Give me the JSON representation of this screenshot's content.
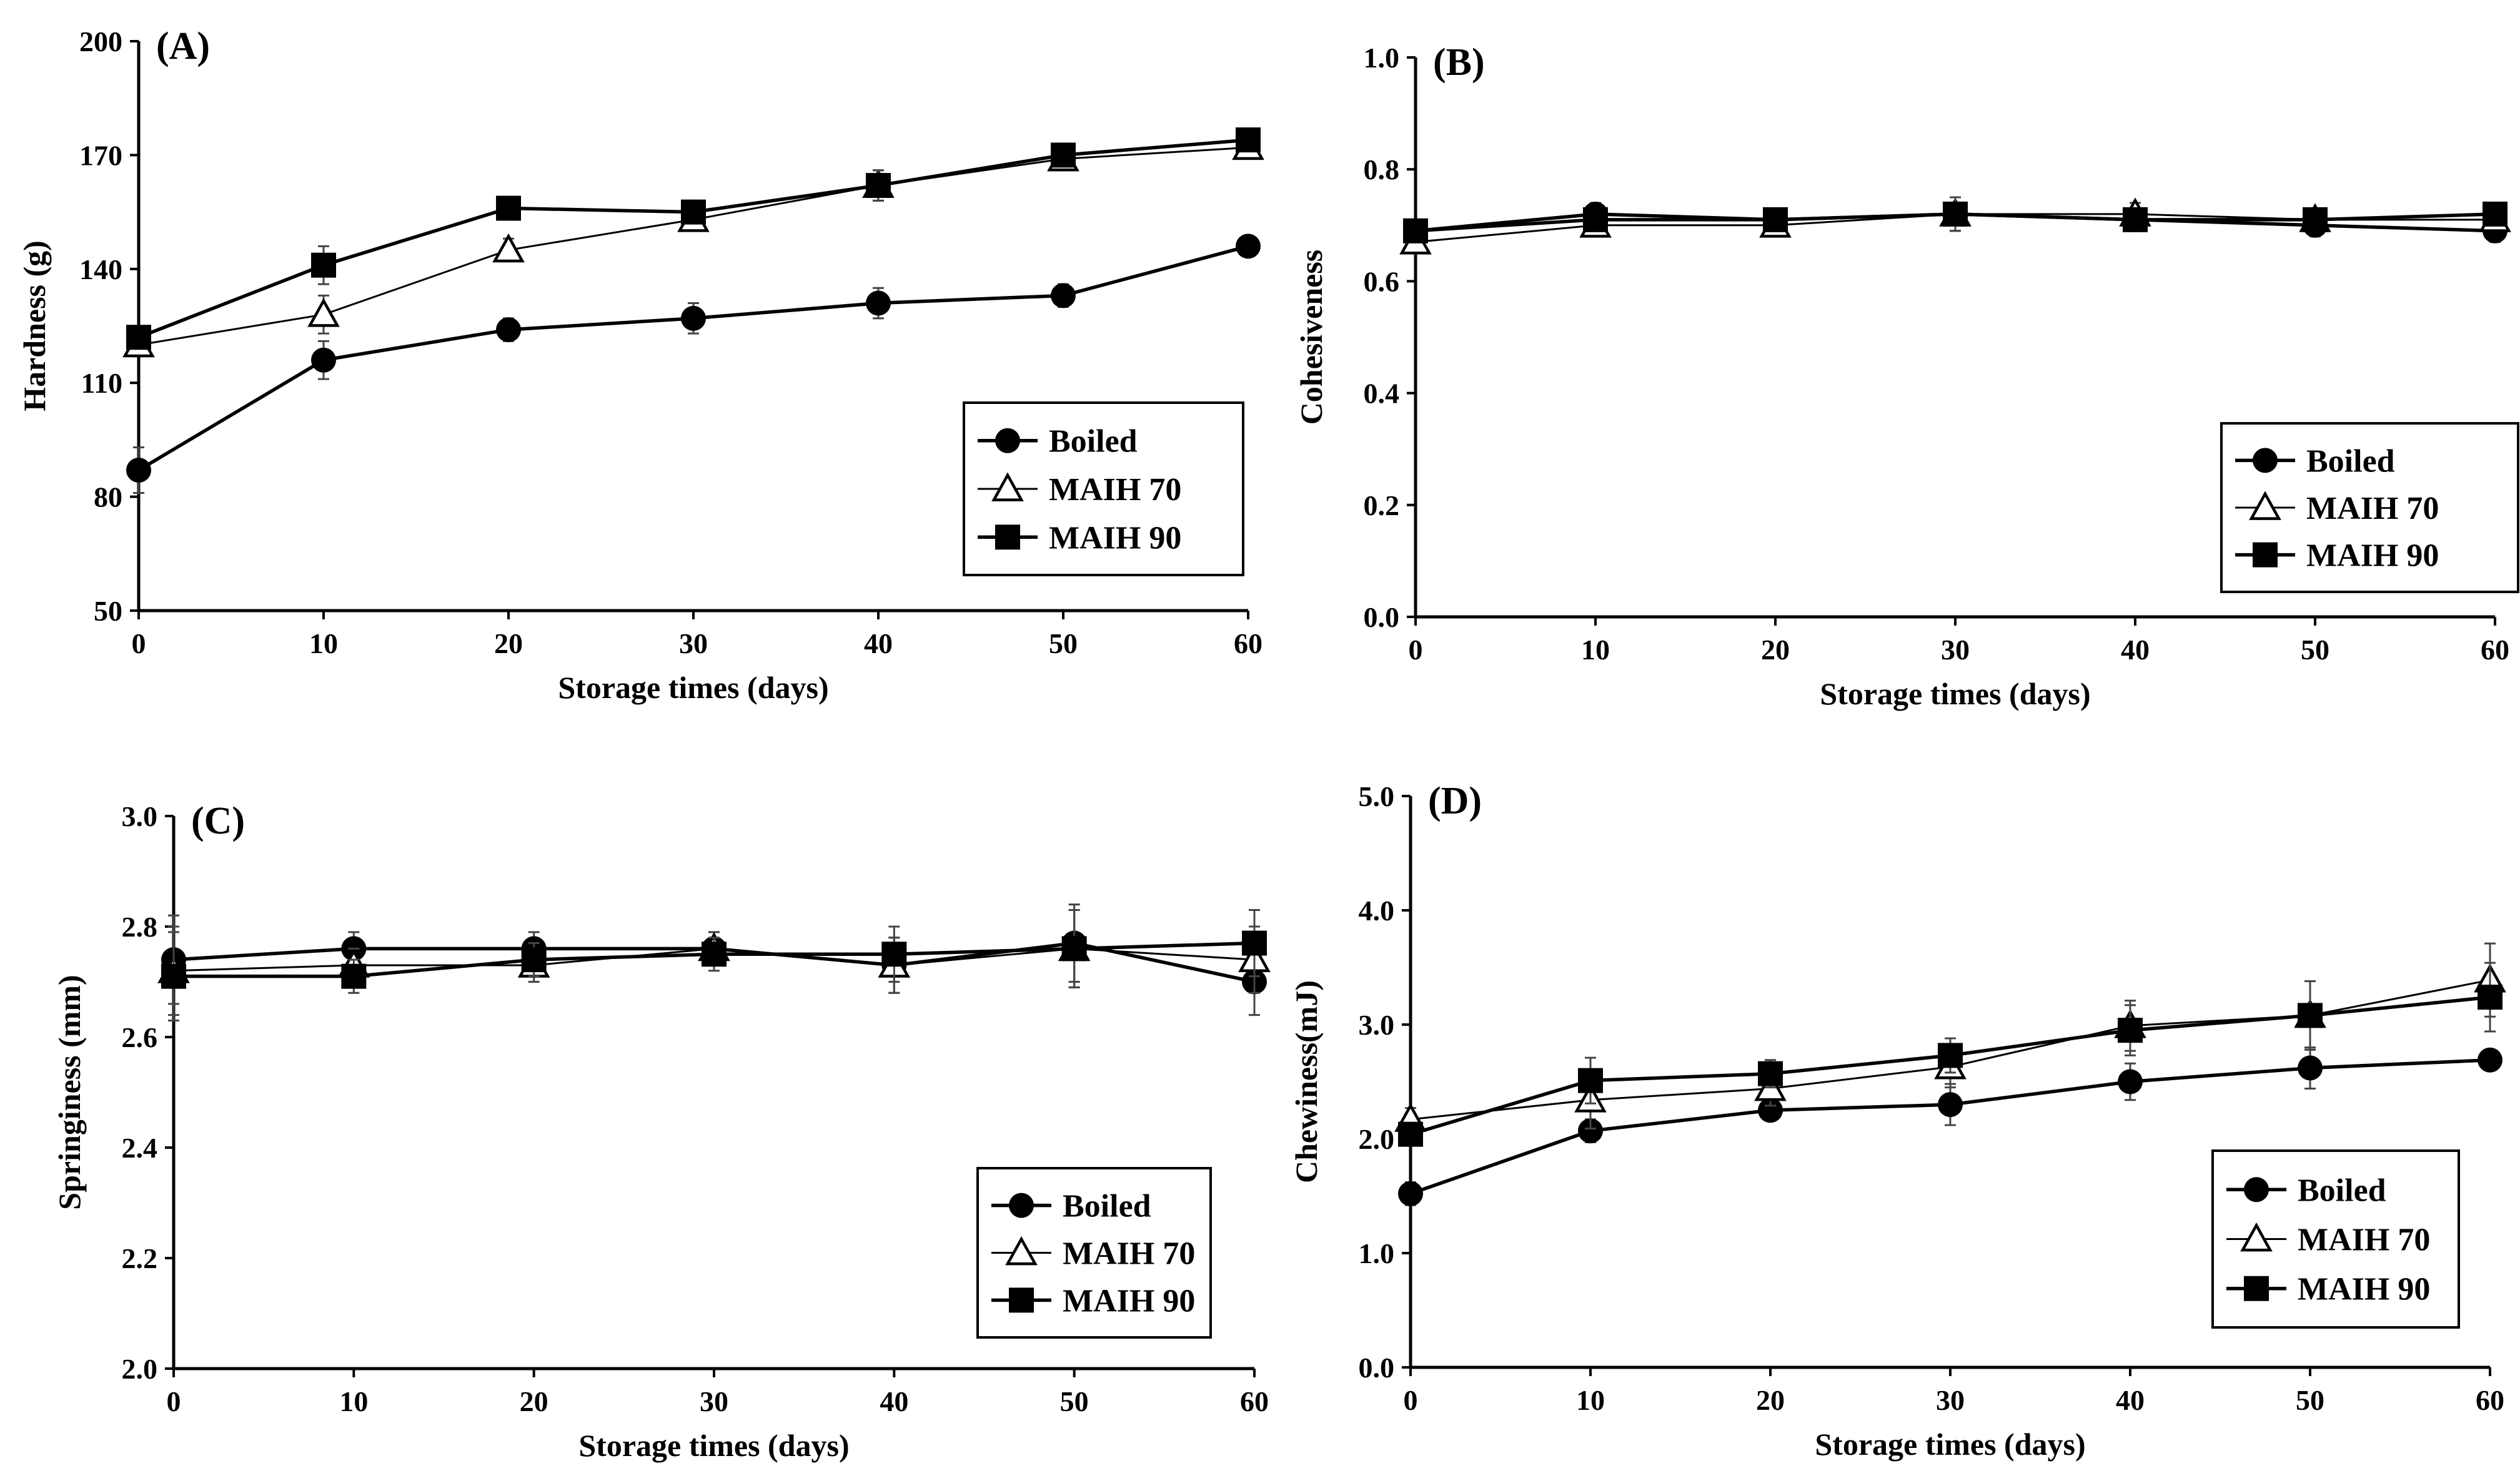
{
  "chart_data": [
    {
      "type": "line",
      "panel_label": "(A)",
      "xlabel": "Storage times (days)",
      "ylabel": "Hardness (g)",
      "xlim": [
        0,
        60
      ],
      "ylim": [
        50,
        200
      ],
      "xticks": [
        0,
        10,
        20,
        30,
        40,
        50,
        60
      ],
      "yticks": [
        50,
        80,
        110,
        140,
        170,
        200
      ],
      "ytick_labels": [
        "50",
        "80",
        "110",
        "140",
        "170",
        "200"
      ],
      "legend_position": "bottom-right",
      "x": [
        0,
        10,
        20,
        30,
        40,
        50,
        60
      ],
      "series": [
        {
          "name": "Boiled",
          "marker": "filled-circle",
          "line": "thick",
          "values": [
            87,
            116,
            124,
            127,
            131,
            133,
            146
          ],
          "errors": [
            6,
            5,
            3,
            4,
            4,
            3,
            2
          ]
        },
        {
          "name": "MAIH 70",
          "marker": "open-triangle",
          "line": "thin",
          "values": [
            120,
            128,
            145,
            153,
            162,
            169,
            172
          ],
          "errors": [
            3,
            5,
            3,
            3,
            4,
            3,
            2
          ]
        },
        {
          "name": "MAIH 90",
          "marker": "filled-square",
          "line": "thick",
          "values": [
            122,
            141,
            156,
            155,
            162,
            170,
            174
          ],
          "errors": [
            3,
            5,
            3,
            3,
            4,
            3,
            2
          ]
        }
      ]
    },
    {
      "type": "line",
      "panel_label": "(B)",
      "xlabel": "Storage times (days)",
      "ylabel": "Cohesiveness",
      "xlim": [
        0,
        60
      ],
      "ylim": [
        0,
        1
      ],
      "xticks": [
        0,
        10,
        20,
        30,
        40,
        50,
        60
      ],
      "yticks": [
        0,
        0.2,
        0.4,
        0.6,
        0.8,
        1.0
      ],
      "ytick_labels": [
        "0.0",
        "0.2",
        "0.4",
        "0.6",
        "0.8",
        "1.0"
      ],
      "legend_position": "bottom-right",
      "x": [
        0,
        10,
        20,
        30,
        40,
        50,
        60
      ],
      "series": [
        {
          "name": "Boiled",
          "marker": "filled-circle",
          "line": "thick",
          "values": [
            0.69,
            0.72,
            0.71,
            0.72,
            0.71,
            0.7,
            0.69
          ],
          "errors": [
            0.02,
            0.02,
            0.02,
            0.03,
            0.02,
            0.02,
            0.02
          ]
        },
        {
          "name": "MAIH 70",
          "marker": "open-triangle",
          "line": "thin",
          "values": [
            0.67,
            0.7,
            0.7,
            0.72,
            0.72,
            0.71,
            0.71
          ],
          "errors": [
            0.02,
            0.02,
            0.02,
            0.03,
            0.02,
            0.02,
            0.02
          ]
        },
        {
          "name": "MAIH 90",
          "marker": "filled-square",
          "line": "thick",
          "values": [
            0.69,
            0.71,
            0.71,
            0.72,
            0.71,
            0.71,
            0.72
          ],
          "errors": [
            0.02,
            0.02,
            0.02,
            0.03,
            0.02,
            0.02,
            0.02
          ]
        }
      ]
    },
    {
      "type": "line",
      "panel_label": "(C)",
      "xlabel": "Storage times (days)",
      "ylabel": "Springiness (mm)",
      "xlim": [
        0,
        60
      ],
      "ylim": [
        2,
        3
      ],
      "xticks": [
        0,
        10,
        20,
        30,
        40,
        50,
        60
      ],
      "yticks": [
        2.0,
        2.2,
        2.4,
        2.6,
        2.8,
        3.0
      ],
      "ytick_labels": [
        "2.0",
        "2.2",
        "2.4",
        "2.6",
        "2.8",
        "3.0"
      ],
      "legend_position": "bottom-right",
      "x": [
        0,
        10,
        20,
        30,
        40,
        50,
        60
      ],
      "series": [
        {
          "name": "Boiled",
          "marker": "filled-circle",
          "line": "thick",
          "values": [
            2.74,
            2.76,
            2.76,
            2.76,
            2.73,
            2.77,
            2.7
          ],
          "errors": [
            0.08,
            0.03,
            0.03,
            0.03,
            0.05,
            0.07,
            0.06
          ]
        },
        {
          "name": "MAIH 70",
          "marker": "open-triangle",
          "line": "thin",
          "values": [
            2.72,
            2.73,
            2.73,
            2.76,
            2.73,
            2.76,
            2.74
          ],
          "errors": [
            0.08,
            0.03,
            0.03,
            0.03,
            0.05,
            0.07,
            0.06
          ]
        },
        {
          "name": "MAIH 90",
          "marker": "filled-square",
          "line": "thick",
          "values": [
            2.71,
            2.71,
            2.74,
            2.75,
            2.75,
            2.76,
            2.77
          ],
          "errors": [
            0.08,
            0.03,
            0.03,
            0.03,
            0.05,
            0.07,
            0.06
          ]
        }
      ]
    },
    {
      "type": "line",
      "panel_label": "(D)",
      "xlabel": "Storage times (days)",
      "ylabel": "Chewiness(mJ)",
      "xlim": [
        0,
        60
      ],
      "ylim": [
        0,
        5
      ],
      "xticks": [
        0,
        10,
        20,
        30,
        40,
        50,
        60
      ],
      "yticks": [
        0,
        1,
        2,
        3,
        4,
        5
      ],
      "ytick_labels": [
        "0.0",
        "1.0",
        "2.0",
        "3.0",
        "4.0",
        "5.0"
      ],
      "legend_position": "bottom-right",
      "x": [
        0,
        10,
        20,
        30,
        40,
        50,
        60
      ],
      "series": [
        {
          "name": "Boiled",
          "marker": "filled-circle",
          "line": "thick",
          "values": [
            1.52,
            2.07,
            2.25,
            2.3,
            2.5,
            2.62,
            2.69
          ],
          "errors": [
            0.1,
            0.1,
            0.08,
            0.18,
            0.16,
            0.18,
            0.08
          ]
        },
        {
          "name": "MAIH 70",
          "marker": "open-triangle",
          "line": "thin",
          "values": [
            2.17,
            2.34,
            2.44,
            2.63,
            2.99,
            3.08,
            3.39
          ],
          "errors": [
            0.1,
            0.25,
            0.15,
            0.18,
            0.22,
            0.3,
            0.32
          ]
        },
        {
          "name": "MAIH 90",
          "marker": "filled-square",
          "line": "thick",
          "values": [
            2.04,
            2.51,
            2.57,
            2.73,
            2.95,
            3.08,
            3.24
          ],
          "errors": [
            0.1,
            0.2,
            0.12,
            0.15,
            0.22,
            0.3,
            0.3
          ]
        }
      ]
    }
  ]
}
